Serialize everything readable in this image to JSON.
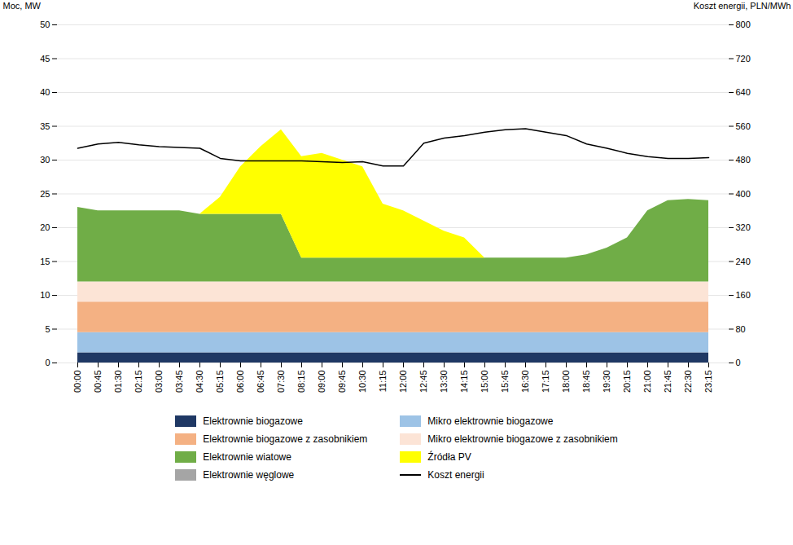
{
  "chart_data": {
    "type": "area",
    "stacked": true,
    "categories": [
      "00:00",
      "00:45",
      "01:30",
      "02:15",
      "03:00",
      "03:45",
      "04:30",
      "05:15",
      "06:00",
      "06:45",
      "07:30",
      "08:15",
      "09:00",
      "09:45",
      "10:30",
      "11:15",
      "12:00",
      "12:45",
      "13:30",
      "14:15",
      "15:00",
      "15:45",
      "16:30",
      "17:15",
      "18:00",
      "18:45",
      "19:30",
      "20:15",
      "21:00",
      "21:45",
      "22:30",
      "23:15"
    ],
    "series": [
      {
        "name": "Elektrownie biogazowe",
        "color": "#1f3864",
        "values": [
          1.5,
          1.5,
          1.5,
          1.5,
          1.5,
          1.5,
          1.5,
          1.5,
          1.5,
          1.5,
          1.5,
          1.5,
          1.5,
          1.5,
          1.5,
          1.5,
          1.5,
          1.5,
          1.5,
          1.5,
          1.5,
          1.5,
          1.5,
          1.5,
          1.5,
          1.5,
          1.5,
          1.5,
          1.5,
          1.5,
          1.5,
          1.5
        ]
      },
      {
        "name": "Mikro elektrownie biogazowe",
        "color": "#9dc3e6",
        "values": [
          3.0,
          3.0,
          3.0,
          3.0,
          3.0,
          3.0,
          3.0,
          3.0,
          3.0,
          3.0,
          3.0,
          3.0,
          3.0,
          3.0,
          3.0,
          3.0,
          3.0,
          3.0,
          3.0,
          3.0,
          3.0,
          3.0,
          3.0,
          3.0,
          3.0,
          3.0,
          3.0,
          3.0,
          3.0,
          3.0,
          3.0,
          3.0
        ]
      },
      {
        "name": "Elektrownie biogazowe z zasobnikiem",
        "color": "#f4b183",
        "values": [
          4.5,
          4.5,
          4.5,
          4.5,
          4.5,
          4.5,
          4.5,
          4.5,
          4.5,
          4.5,
          4.5,
          4.5,
          4.5,
          4.5,
          4.5,
          4.5,
          4.5,
          4.5,
          4.5,
          4.5,
          4.5,
          4.5,
          4.5,
          4.5,
          4.5,
          4.5,
          4.5,
          4.5,
          4.5,
          4.5,
          4.5,
          4.5
        ]
      },
      {
        "name": "Mikro elektrownie biogazowe z zasobnikiem",
        "color": "#fce4d6",
        "values": [
          3.0,
          3.0,
          3.0,
          3.0,
          3.0,
          3.0,
          3.0,
          3.0,
          3.0,
          3.0,
          3.0,
          3.0,
          3.0,
          3.0,
          3.0,
          3.0,
          3.0,
          3.0,
          3.0,
          3.0,
          3.0,
          3.0,
          3.0,
          3.0,
          3.0,
          3.0,
          3.0,
          3.0,
          3.0,
          3.0,
          3.0,
          3.0
        ]
      },
      {
        "name": "Elektrownie wiatowe",
        "color": "#70ad47",
        "values": [
          11.0,
          10.5,
          10.5,
          10.5,
          10.5,
          10.5,
          10.0,
          10.0,
          10.0,
          10.0,
          10.0,
          3.5,
          3.5,
          3.5,
          3.5,
          3.5,
          3.5,
          3.5,
          3.5,
          3.5,
          3.5,
          3.5,
          3.5,
          3.5,
          3.5,
          4.0,
          5.0,
          6.5,
          10.5,
          12.0,
          12.2,
          12.0
        ]
      },
      {
        "name": "Źródła PV",
        "color": "#ffff00",
        "values": [
          0.0,
          0.0,
          0.0,
          0.0,
          0.0,
          0.0,
          0.0,
          2.5,
          7.0,
          10.0,
          12.5,
          15.0,
          15.5,
          14.5,
          13.5,
          8.0,
          7.0,
          5.5,
          4.0,
          3.0,
          0.0,
          0.0,
          0.0,
          0.0,
          0.0,
          0.0,
          0.0,
          0.0,
          0.0,
          0.0,
          0.0,
          0.0
        ]
      },
      {
        "name": "Elektrownie węglowe",
        "color": "#a5a5a5",
        "values": [
          0.0,
          0.0,
          0.0,
          0.0,
          0.0,
          0.0,
          0.0,
          0.0,
          0.0,
          0.0,
          0.0,
          0.0,
          0.0,
          0.0,
          0.0,
          0.0,
          0.0,
          0.0,
          0.0,
          0.0,
          0.0,
          0.0,
          0.0,
          0.0,
          0.0,
          0.0,
          0.0,
          0.0,
          0.0,
          0.0,
          0.0,
          0.0
        ]
      },
      {
        "name": "Koszt energii",
        "color": "#000000",
        "type": "line",
        "axis": "y2",
        "values": [
          508,
          518,
          522,
          516,
          512,
          510,
          508,
          484,
          478,
          478,
          478,
          478,
          476,
          474,
          476,
          466,
          466,
          520,
          532,
          538,
          546,
          552,
          554,
          546,
          538,
          518,
          508,
          496,
          488,
          484,
          484,
          486
        ]
      }
    ],
    "ylabel": "Moc, MW",
    "y2label": "Koszt energii, PLN/MWh",
    "ylim": [
      0,
      50
    ],
    "yticks": [
      0,
      5,
      10,
      15,
      20,
      25,
      30,
      35,
      40,
      45,
      50
    ],
    "y2lim": [
      0,
      800
    ],
    "y2ticks": [
      0,
      80,
      160,
      240,
      320,
      400,
      480,
      560,
      640,
      720,
      800
    ],
    "grid": true,
    "legend": "bottom"
  }
}
